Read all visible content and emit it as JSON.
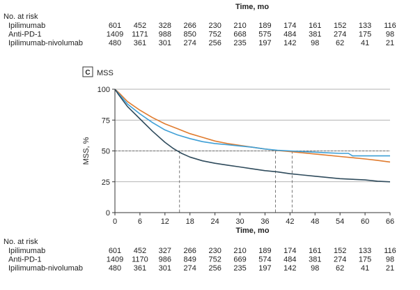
{
  "top_risk_table": {
    "time_label": "Time, mo",
    "header": "No. at risk",
    "rows": [
      {
        "name": "Ipilimumab",
        "values": [
          "601",
          "452",
          "328",
          "266",
          "230",
          "210",
          "189",
          "174",
          "161",
          "152",
          "133",
          "116"
        ]
      },
      {
        "name": "Anti-PD-1",
        "values": [
          "1409",
          "1171",
          "988",
          "850",
          "752",
          "668",
          "575",
          "484",
          "381",
          "274",
          "175",
          "98"
        ]
      },
      {
        "name": "Ipilimumab-nivolumab",
        "values": [
          "480",
          "361",
          "301",
          "274",
          "256",
          "235",
          "197",
          "142",
          "98",
          "62",
          "41",
          "21"
        ]
      }
    ]
  },
  "panel": {
    "letter": "C",
    "title": "MSS"
  },
  "bottom_risk_table": {
    "header": "No. at risk",
    "rows": [
      {
        "name": "Ipilimumab",
        "values": [
          "601",
          "452",
          "327",
          "266",
          "230",
          "210",
          "189",
          "174",
          "161",
          "152",
          "133",
          "116"
        ]
      },
      {
        "name": "Anti-PD-1",
        "values": [
          "1409",
          "1170",
          "986",
          "849",
          "752",
          "669",
          "574",
          "484",
          "381",
          "274",
          "175",
          "98"
        ]
      },
      {
        "name": "Ipilimumab-nivolumab",
        "values": [
          "480",
          "361",
          "301",
          "274",
          "256",
          "235",
          "197",
          "142",
          "98",
          "62",
          "41",
          "21"
        ]
      }
    ]
  },
  "chart_data": {
    "type": "line",
    "title": "MSS",
    "xlabel": "Time, mo",
    "ylabel": "MSS, %",
    "xlim": [
      0,
      66
    ],
    "ylim": [
      0,
      100
    ],
    "xticks": [
      0,
      6,
      12,
      18,
      24,
      30,
      36,
      42,
      48,
      54,
      60,
      66
    ],
    "yticks": [
      0,
      25,
      50,
      75,
      100
    ],
    "grid": "horizontal",
    "reference_line": {
      "y": 50
    },
    "medians": [
      {
        "series": "Ipilimumab-nivolumab",
        "x": 15.5
      },
      {
        "series": "Ipilimumab",
        "x": 38.5
      },
      {
        "series": "Anti-PD-1",
        "x": 42.5
      }
    ],
    "series": [
      {
        "name": "Anti-PD-1",
        "color": "#e07b2e",
        "x": [
          0,
          1,
          3,
          6,
          9,
          12,
          15,
          18,
          21,
          24,
          27,
          30,
          33,
          36,
          39,
          42,
          45,
          48,
          51,
          54,
          57,
          60,
          63,
          66
        ],
        "y": [
          100,
          97,
          90,
          83,
          77,
          72,
          68,
          64,
          61,
          58,
          56,
          54.5,
          53,
          51.5,
          50.3,
          49.5,
          48.5,
          47.5,
          46.5,
          45.5,
          44.5,
          43.5,
          42.3,
          41
        ]
      },
      {
        "name": "Ipilimumab",
        "color": "#3e9fd6",
        "x": [
          0,
          1,
          3,
          6,
          9,
          12,
          15,
          18,
          21,
          24,
          27,
          30,
          33,
          36,
          39,
          42,
          45,
          48,
          51,
          54,
          56,
          57,
          60,
          63,
          66
        ],
        "y": [
          100,
          96,
          88,
          80,
          73,
          67,
          63,
          60,
          57.5,
          56,
          55,
          54,
          53,
          51.5,
          50.5,
          50,
          49.5,
          49,
          48.5,
          48,
          48,
          46,
          46,
          46,
          46
        ]
      },
      {
        "name": "Ipilimumab-nivolumab",
        "color": "#2f4b5c",
        "x": [
          0,
          1,
          3,
          6,
          9,
          12,
          14,
          16,
          18,
          21,
          24,
          27,
          30,
          33,
          36,
          39,
          42,
          45,
          48,
          51,
          54,
          57,
          60,
          63,
          66
        ],
        "y": [
          100,
          95,
          86,
          76,
          66,
          57,
          52,
          48,
          45,
          42,
          40,
          38.5,
          37,
          35.5,
          34,
          33,
          31.5,
          30.5,
          29.5,
          28.5,
          27.5,
          27,
          26.5,
          25.5,
          25
        ]
      }
    ]
  }
}
